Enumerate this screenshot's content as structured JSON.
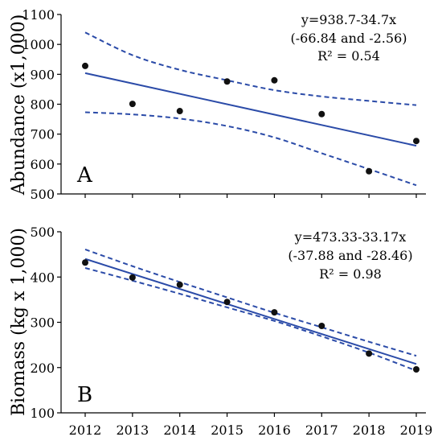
{
  "chart_data": [
    {
      "type": "scatter",
      "panel_label": "A",
      "ylabel": "Abundance (x1,000)",
      "xlabel": "",
      "ylim": [
        500,
        1100
      ],
      "yticks": [
        500,
        600,
        700,
        800,
        900,
        1000,
        1100
      ],
      "xlim": [
        2012,
        2019
      ],
      "xticks": [],
      "points": {
        "x": [
          2012,
          2013,
          2014,
          2015,
          2016,
          2017,
          2018,
          2019
        ],
        "y": [
          928,
          801,
          777,
          876,
          880,
          767,
          576,
          677
        ]
      },
      "fit": {
        "intercept_at_2012": 904,
        "slope": -34.7
      },
      "ci_upper": {
        "x": [
          2012,
          2013,
          2014,
          2015,
          2016,
          2017,
          2018,
          2019
        ],
        "y": [
          1040,
          964,
          915,
          880,
          847,
          826,
          811,
          797
        ]
      },
      "ci_lower": {
        "x": [
          2012,
          2013,
          2014,
          2015,
          2016,
          2017,
          2018,
          2019
        ],
        "y": [
          773,
          766,
          752,
          727,
          689,
          636,
          583,
          529
        ]
      },
      "annotation": [
        "y=938.7-34.7x",
        "(-66.84 and -2.56)",
        "R² = 0.54"
      ],
      "colors": {
        "line": "#2b4ba8",
        "points": "#111111"
      }
    },
    {
      "type": "scatter",
      "panel_label": "B",
      "ylabel": "Biomass (kg x 1,000)",
      "xlabel": "",
      "ylim": [
        100,
        500
      ],
      "yticks": [
        100,
        200,
        300,
        400,
        500
      ],
      "xlim": [
        2012,
        2019
      ],
      "xticks": [
        "2012",
        "2013",
        "2014",
        "2015",
        "2016",
        "2017",
        "2018",
        "2019"
      ],
      "points": {
        "x": [
          2012,
          2013,
          2014,
          2015,
          2016,
          2017,
          2018,
          2019
        ],
        "y": [
          432,
          399,
          383,
          345,
          322,
          292,
          231,
          196
        ]
      },
      "fit": {
        "intercept_at_2012": 440,
        "slope": -33.17
      },
      "ci_upper": {
        "x": [
          2012,
          2013,
          2014,
          2015,
          2016,
          2017,
          2018,
          2019
        ],
        "y": [
          461,
          424,
          389,
          355,
          321,
          289,
          257,
          226
        ]
      },
      "ci_lower": {
        "x": [
          2012,
          2013,
          2014,
          2015,
          2016,
          2017,
          2018,
          2019
        ],
        "y": [
          420,
          392,
          363,
          333,
          303,
          269,
          233,
          193
        ]
      },
      "annotation": [
        "y=473.33-33.17x",
        "(-37.88 and -28.46)",
        "R² = 0.98"
      ],
      "colors": {
        "line": "#2b4ba8",
        "points": "#111111"
      }
    }
  ]
}
